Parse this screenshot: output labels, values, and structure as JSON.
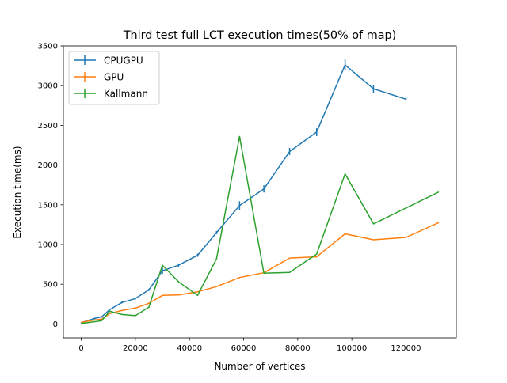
{
  "chart_data": {
    "type": "line",
    "title": "Third test full LCT execution times(50% of map)",
    "xlabel": "Number of vertices",
    "ylabel": "Execution time(ms)",
    "xlim": [
      -6600,
      138600
    ],
    "ylim": [
      -175,
      3500
    ],
    "xticks": [
      0,
      20000,
      40000,
      60000,
      80000,
      100000,
      120000
    ],
    "xtick_labels": [
      "0",
      "20000",
      "40000",
      "60000",
      "80000",
      "100000",
      "120000"
    ],
    "yticks": [
      0,
      500,
      1000,
      1500,
      2000,
      2500,
      3000,
      3500
    ],
    "ytick_labels": [
      "0",
      "500",
      "1000",
      "1500",
      "2000",
      "2500",
      "3000",
      "3500"
    ],
    "grid": false,
    "legend_position": "top-left",
    "series": [
      {
        "name": "CPUGPU",
        "color": "#1f77b4",
        "points": [
          [
            0,
            15
          ],
          [
            5000,
            70
          ],
          [
            7500,
            90
          ],
          [
            10500,
            180
          ],
          [
            15000,
            270
          ],
          [
            20000,
            320
          ],
          [
            25000,
            430
          ],
          [
            30000,
            670
          ],
          [
            36000,
            740
          ],
          [
            43000,
            865
          ],
          [
            50000,
            1150
          ],
          [
            58500,
            1490
          ],
          [
            67500,
            1700
          ],
          [
            77000,
            2170
          ],
          [
            87000,
            2415
          ],
          [
            97500,
            3260
          ],
          [
            108000,
            2960
          ],
          [
            120000,
            2830
          ]
        ],
        "errors": [
          5,
          10,
          10,
          12,
          12,
          12,
          15,
          40,
          20,
          20,
          20,
          55,
          45,
          45,
          50,
          70,
          50,
          20
        ]
      },
      {
        "name": "GPU",
        "color": "#ff7f0e",
        "points": [
          [
            0,
            20
          ],
          [
            5000,
            50
          ],
          [
            7500,
            60
          ],
          [
            10500,
            130
          ],
          [
            15000,
            170
          ],
          [
            20000,
            200
          ],
          [
            25000,
            260
          ],
          [
            30000,
            360
          ],
          [
            36000,
            365
          ],
          [
            43000,
            405
          ],
          [
            50000,
            470
          ],
          [
            58500,
            585
          ],
          [
            67500,
            645
          ],
          [
            77000,
            830
          ],
          [
            87000,
            845
          ],
          [
            97500,
            1135
          ],
          [
            108000,
            1060
          ],
          [
            120000,
            1090
          ],
          [
            132000,
            1275
          ]
        ],
        "errors": [
          3,
          5,
          5,
          5,
          5,
          5,
          5,
          5,
          5,
          5,
          5,
          5,
          5,
          5,
          5,
          5,
          5,
          5,
          5
        ]
      },
      {
        "name": "Kallmann",
        "color": "#2ca02c",
        "points": [
          [
            0,
            5
          ],
          [
            7500,
            40
          ],
          [
            10500,
            160
          ],
          [
            15000,
            120
          ],
          [
            20000,
            105
          ],
          [
            25000,
            210
          ],
          [
            30000,
            740
          ],
          [
            36000,
            530
          ],
          [
            43000,
            360
          ],
          [
            50000,
            820
          ],
          [
            58500,
            2360
          ],
          [
            67500,
            640
          ],
          [
            77000,
            650
          ],
          [
            87000,
            880
          ],
          [
            97500,
            1890
          ],
          [
            108000,
            1260
          ],
          [
            132000,
            1660
          ]
        ],
        "errors": [
          2,
          3,
          5,
          5,
          5,
          5,
          5,
          5,
          5,
          5,
          5,
          5,
          5,
          5,
          5,
          5,
          5
        ]
      }
    ]
  }
}
